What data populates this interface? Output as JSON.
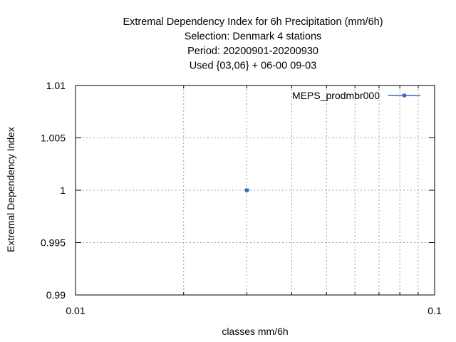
{
  "chart_data": {
    "type": "scatter",
    "title_lines": [
      "Extremal Dependency Index  for 6h Precipitation (mm/6h)",
      "Selection: Denmark      4 stations",
      "Period: 20200901-20200930",
      "Used {03,06} + 06-00 09-03"
    ],
    "xlabel": "classes mm/6h",
    "ylabel": "Extremal Dependency Index",
    "xscale": "log",
    "xlim": [
      0.01,
      0.1
    ],
    "ylim": [
      0.99,
      1.01
    ],
    "xticks": [
      {
        "value": 0.01,
        "label": "0.01"
      },
      {
        "value": 0.1,
        "label": "0.1"
      }
    ],
    "yticks": [
      {
        "value": 1.01,
        "label": "1.01"
      },
      {
        "value": 1.005,
        "label": "1.005"
      },
      {
        "value": 1,
        "label": "1"
      },
      {
        "value": 0.995,
        "label": "0.995"
      },
      {
        "value": 0.99,
        "label": "0.99"
      }
    ],
    "grid": true,
    "legend_position": "top-right",
    "series": [
      {
        "name": "MEPS_prodmbr000",
        "color": "#3a66c4",
        "x": [
          0.03
        ],
        "y": [
          1
        ]
      }
    ]
  }
}
